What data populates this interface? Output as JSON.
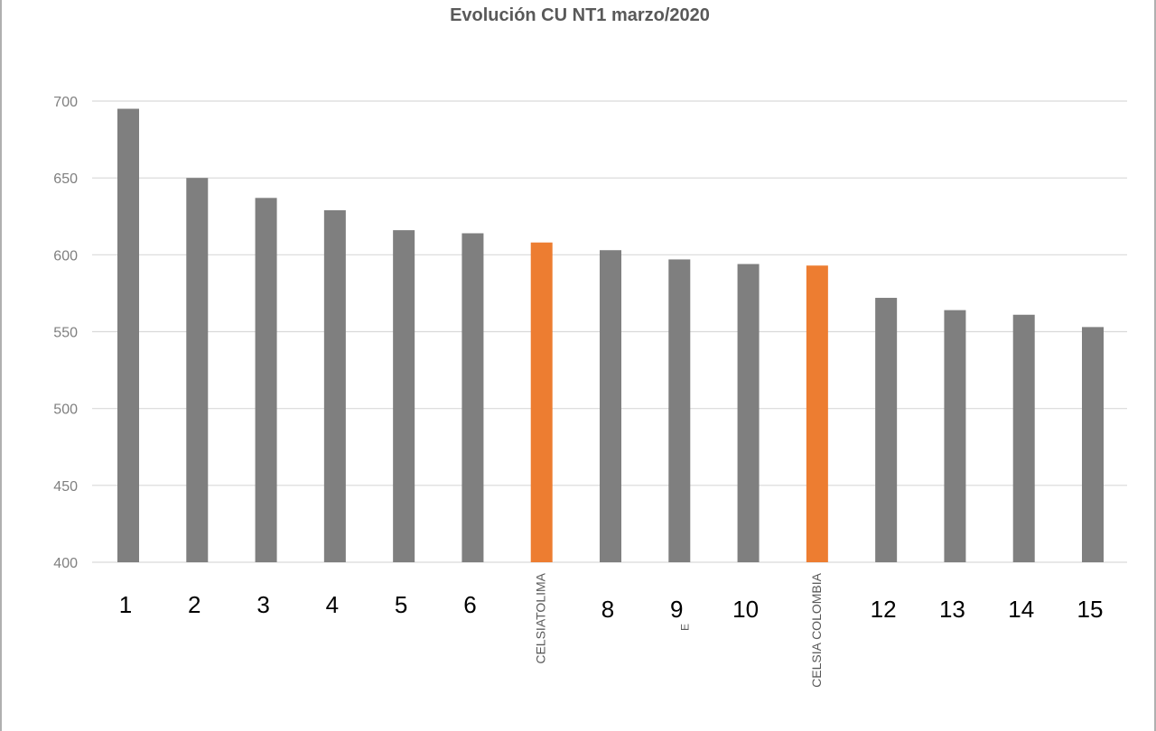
{
  "colors": {
    "default_bar": "#7f7f7f",
    "highlight_bar": "#ed7d31",
    "grid": "#d9d9d9"
  },
  "chart_data": {
    "type": "bar",
    "title": "Evolución CU NT1 marzo/2020",
    "categories": [
      "1",
      "2",
      "3",
      "4",
      "5",
      "6",
      "CELSIATOLIMA",
      "8",
      "9",
      "10",
      "CELSIA COLOMBIA",
      "12",
      "13",
      "14",
      "15"
    ],
    "values": [
      695,
      650,
      637,
      629,
      616,
      614,
      608,
      603,
      597,
      594,
      593,
      572,
      564,
      561,
      553
    ],
    "highlight": [
      "CELSIATOLIMA",
      "CELSIA COLOMBIA"
    ],
    "extra_label": "E",
    "ylim": [
      400,
      700
    ],
    "yticks": [
      400,
      450,
      500,
      550,
      600,
      650,
      700
    ],
    "grid": true,
    "legend": "none"
  }
}
